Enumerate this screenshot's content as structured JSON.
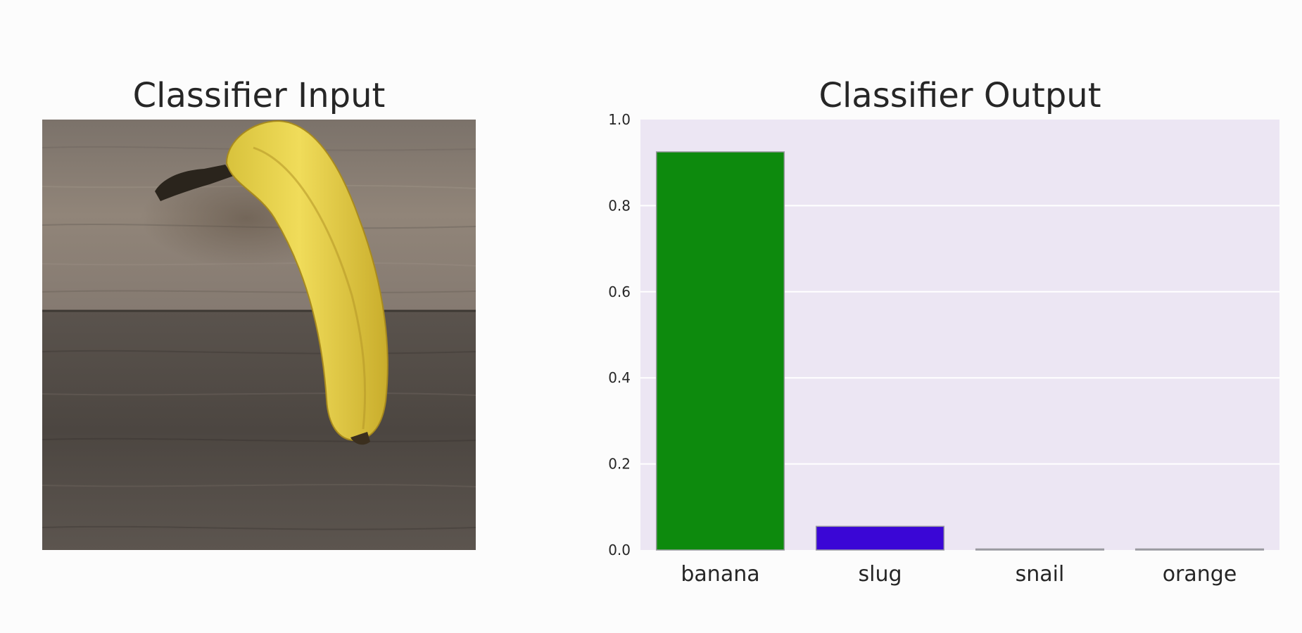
{
  "input_title": "Classifier Input",
  "output_title": "Classifier Output",
  "colors": {
    "banana_bar": "#0d8a0d",
    "slug_bar": "#3a06d6",
    "plot_background": "#ece6f3",
    "gridline": "#ffffff",
    "wood_light": "#8c8278",
    "wood_dark": "#4b4540",
    "banana_yellow": "#ecd64e"
  },
  "chart_data": {
    "type": "bar",
    "title": "Classifier Output",
    "categories": [
      "banana",
      "slug",
      "snail",
      "orange"
    ],
    "values": [
      0.925,
      0.055,
      0.002,
      0.001
    ],
    "bar_colors": [
      "#0d8a0d",
      "#3a06d6",
      "#9a8f9a",
      "#9a8f9a"
    ],
    "ylim": [
      0,
      1.0
    ],
    "yticks": [
      "0.0",
      "0.2",
      "0.4",
      "0.6",
      "0.8",
      "1.0"
    ],
    "ytick_values": [
      0,
      0.2,
      0.4,
      0.6,
      0.8,
      1.0
    ],
    "grid": true,
    "xlabel": "",
    "ylabel": ""
  }
}
